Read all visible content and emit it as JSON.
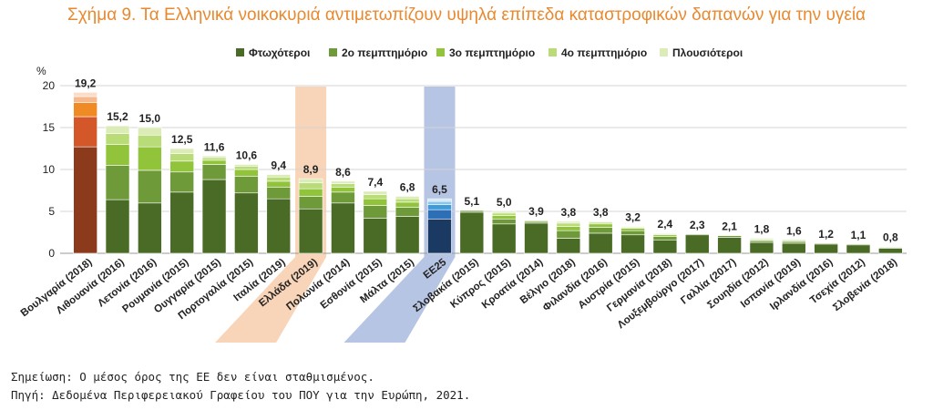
{
  "title": "Σχήμα 9. Τα Ελληνικά νοικοκυριά αντιμετωπίζουν υψηλά επίπεδα καταστροφικών δαπανών για την υγεία",
  "note": "Σημείωση: Ο μέσος όρος της ΕΕ δεν είναι σταθμισμένος.",
  "source": "Πηγή: Δεδομένα Περιφερειακού Γραφείου του ΠΟΥ για την Ευρώπη, 2021.",
  "colors": {
    "q1": "#4a6b25",
    "q2": "#6e9a3a",
    "q3": "#92c43b",
    "q4": "#b9dc79",
    "q5": "#dcecb8",
    "bulgaria": [
      "#8b3a1c",
      "#d4572a",
      "#f08a24",
      "#f6b98e",
      "#fbdcc6"
    ],
    "eu": [
      "#1b3a63",
      "#2c6fb6",
      "#3f9ad8",
      "#8cc5ea",
      "#cfe6f5"
    ],
    "greece_highlight": "#f8d3b4",
    "eu_highlight": "#b3c2e3"
  },
  "chart_data": {
    "type": "bar",
    "stacked": true,
    "ylabel": "%",
    "ylim": [
      0,
      20
    ],
    "yticks": [
      0,
      5,
      10,
      15,
      20
    ],
    "grid": true,
    "legend_position": "top",
    "highlighted": [
      "Ελλάδα (2019)",
      "ΕΕ25"
    ],
    "categories": [
      "Βουλγαρία (2018)",
      "Λιθουανία (2016)",
      "Λετονία (2016)",
      "Ρουμανία (2015)",
      "Ουγγαρία (2015)",
      "Πορτογαλία (2015)",
      "Ιταλία (2019)",
      "Ελλάδα (2019)",
      "Πολωνία (2014)",
      "Εσθονία (2015)",
      "Μάλτα (2015)",
      "ΕΕ25",
      "Σλοβακία (2015)",
      "Κύπρος (2015)",
      "Κροατία (2014)",
      "Βέλγιο (2018)",
      "Φιλανδία (2016)",
      "Αυστρία (2015)",
      "Γερμανία (2018)",
      "Λουξεμβούργο (2017)",
      "Γαλλία (2017)",
      "Σουηδία (2012)",
      "Ισπανία (2019)",
      "Ιρλανδία (2016)",
      "Τσεχία (2012)",
      "Σλοβενία (2018)"
    ],
    "totals": [
      19.2,
      15.2,
      15.0,
      12.5,
      11.6,
      10.6,
      9.4,
      8.9,
      8.6,
      7.4,
      6.8,
      6.5,
      5.1,
      5.0,
      3.9,
      3.8,
      3.8,
      3.2,
      2.4,
      2.3,
      2.1,
      1.8,
      1.6,
      1.2,
      1.1,
      0.8
    ],
    "total_labels": [
      "19,2",
      "15,2",
      "15,0",
      "12,5",
      "11,6",
      "10,6",
      "9,4",
      "8,9",
      "8,6",
      "7,4",
      "6,8",
      "6,5",
      "5,1",
      "5,0",
      "3,9",
      "3,8",
      "3,8",
      "3,2",
      "2,4",
      "2,3",
      "2,1",
      "1,8",
      "1,6",
      "1,2",
      "1,1",
      "0,8"
    ],
    "series": [
      {
        "name": "Φτωχότεροι",
        "values": [
          12.7,
          6.4,
          6.0,
          7.3,
          8.8,
          7.2,
          6.5,
          5.3,
          6.0,
          4.2,
          4.4,
          4.1,
          4.9,
          3.5,
          3.6,
          1.8,
          2.4,
          2.2,
          1.6,
          2.2,
          1.9,
          1.3,
          1.2,
          1.1,
          1.0,
          0.6
        ]
      },
      {
        "name": "2ο πεμπτημόριο",
        "values": [
          3.6,
          4.1,
          3.9,
          2.4,
          1.8,
          2.0,
          1.4,
          1.5,
          1.3,
          1.5,
          1.1,
          1.1,
          0.2,
          0.6,
          0.2,
          0.9,
          0.7,
          0.5,
          0.4,
          0.1,
          0.2,
          0.2,
          0.2,
          0.1,
          0.1,
          0.1
        ]
      },
      {
        "name": "3ο πεμπτημόριο",
        "values": [
          1.7,
          2.5,
          2.8,
          1.3,
          0.5,
          0.8,
          0.7,
          0.9,
          0.6,
          0.8,
          0.6,
          0.6,
          0.0,
          0.4,
          0.1,
          0.5,
          0.4,
          0.3,
          0.2,
          0.0,
          0.0,
          0.1,
          0.1,
          0.0,
          0.0,
          0.0
        ]
      },
      {
        "name": "4ο πεμπτημόριο",
        "values": [
          0.7,
          1.3,
          1.4,
          0.9,
          0.3,
          0.4,
          0.5,
          0.7,
          0.4,
          0.5,
          0.4,
          0.4,
          0.0,
          0.3,
          0.0,
          0.4,
          0.2,
          0.1,
          0.1,
          0.0,
          0.0,
          0.1,
          0.1,
          0.0,
          0.0,
          0.0
        ]
      },
      {
        "name": "Πλουσιότεροι",
        "values": [
          0.5,
          0.9,
          0.9,
          0.6,
          0.2,
          0.2,
          0.3,
          0.5,
          0.3,
          0.4,
          0.3,
          0.3,
          0.0,
          0.2,
          0.0,
          0.2,
          0.1,
          0.1,
          0.1,
          0.0,
          0.0,
          0.1,
          0.0,
          0.0,
          0.0,
          0.1
        ]
      }
    ]
  }
}
